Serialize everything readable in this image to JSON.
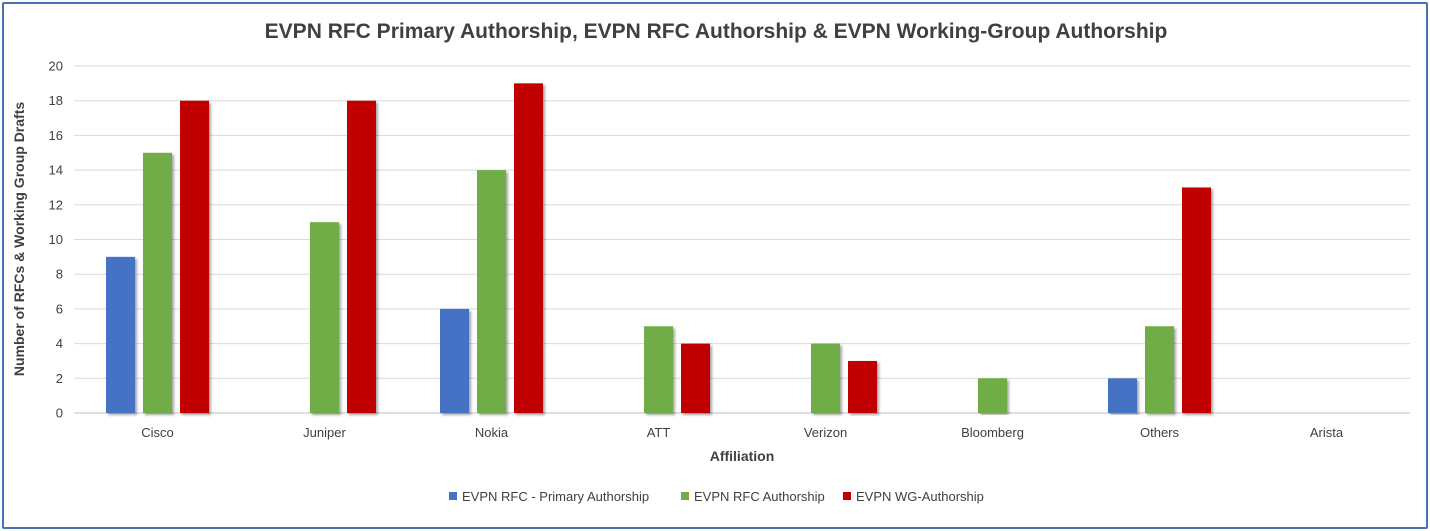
{
  "chart_data": {
    "type": "bar",
    "title": "EVPN RFC Primary Authorship, EVPN RFC Authorship & EVPN Working-Group Authorship",
    "xlabel": "Affiliation",
    "ylabel": "Number of RFCs & Working Group Drafts",
    "ylim": [
      0,
      20
    ],
    "yticks": [
      0,
      2,
      4,
      6,
      8,
      10,
      12,
      14,
      16,
      18,
      20
    ],
    "grid": true,
    "legend_position": "bottom",
    "categories": [
      "Cisco",
      "Juniper",
      "Nokia",
      "ATT",
      "Verizon",
      "Bloomberg",
      "Others",
      "Arista"
    ],
    "series": [
      {
        "name": "EVPN RFC - Primary Authorship",
        "color": "#4472c4",
        "values": [
          9,
          0,
          6,
          0,
          0,
          0,
          2,
          0
        ]
      },
      {
        "name": "EVPN RFC Authorship",
        "color": "#70ad47",
        "values": [
          15,
          11,
          14,
          5,
          4,
          2,
          5,
          0
        ]
      },
      {
        "name": "EVPN WG-Authorship",
        "color": "#c00000",
        "values": [
          18,
          18,
          19,
          4,
          3,
          0,
          13,
          0
        ]
      }
    ]
  }
}
